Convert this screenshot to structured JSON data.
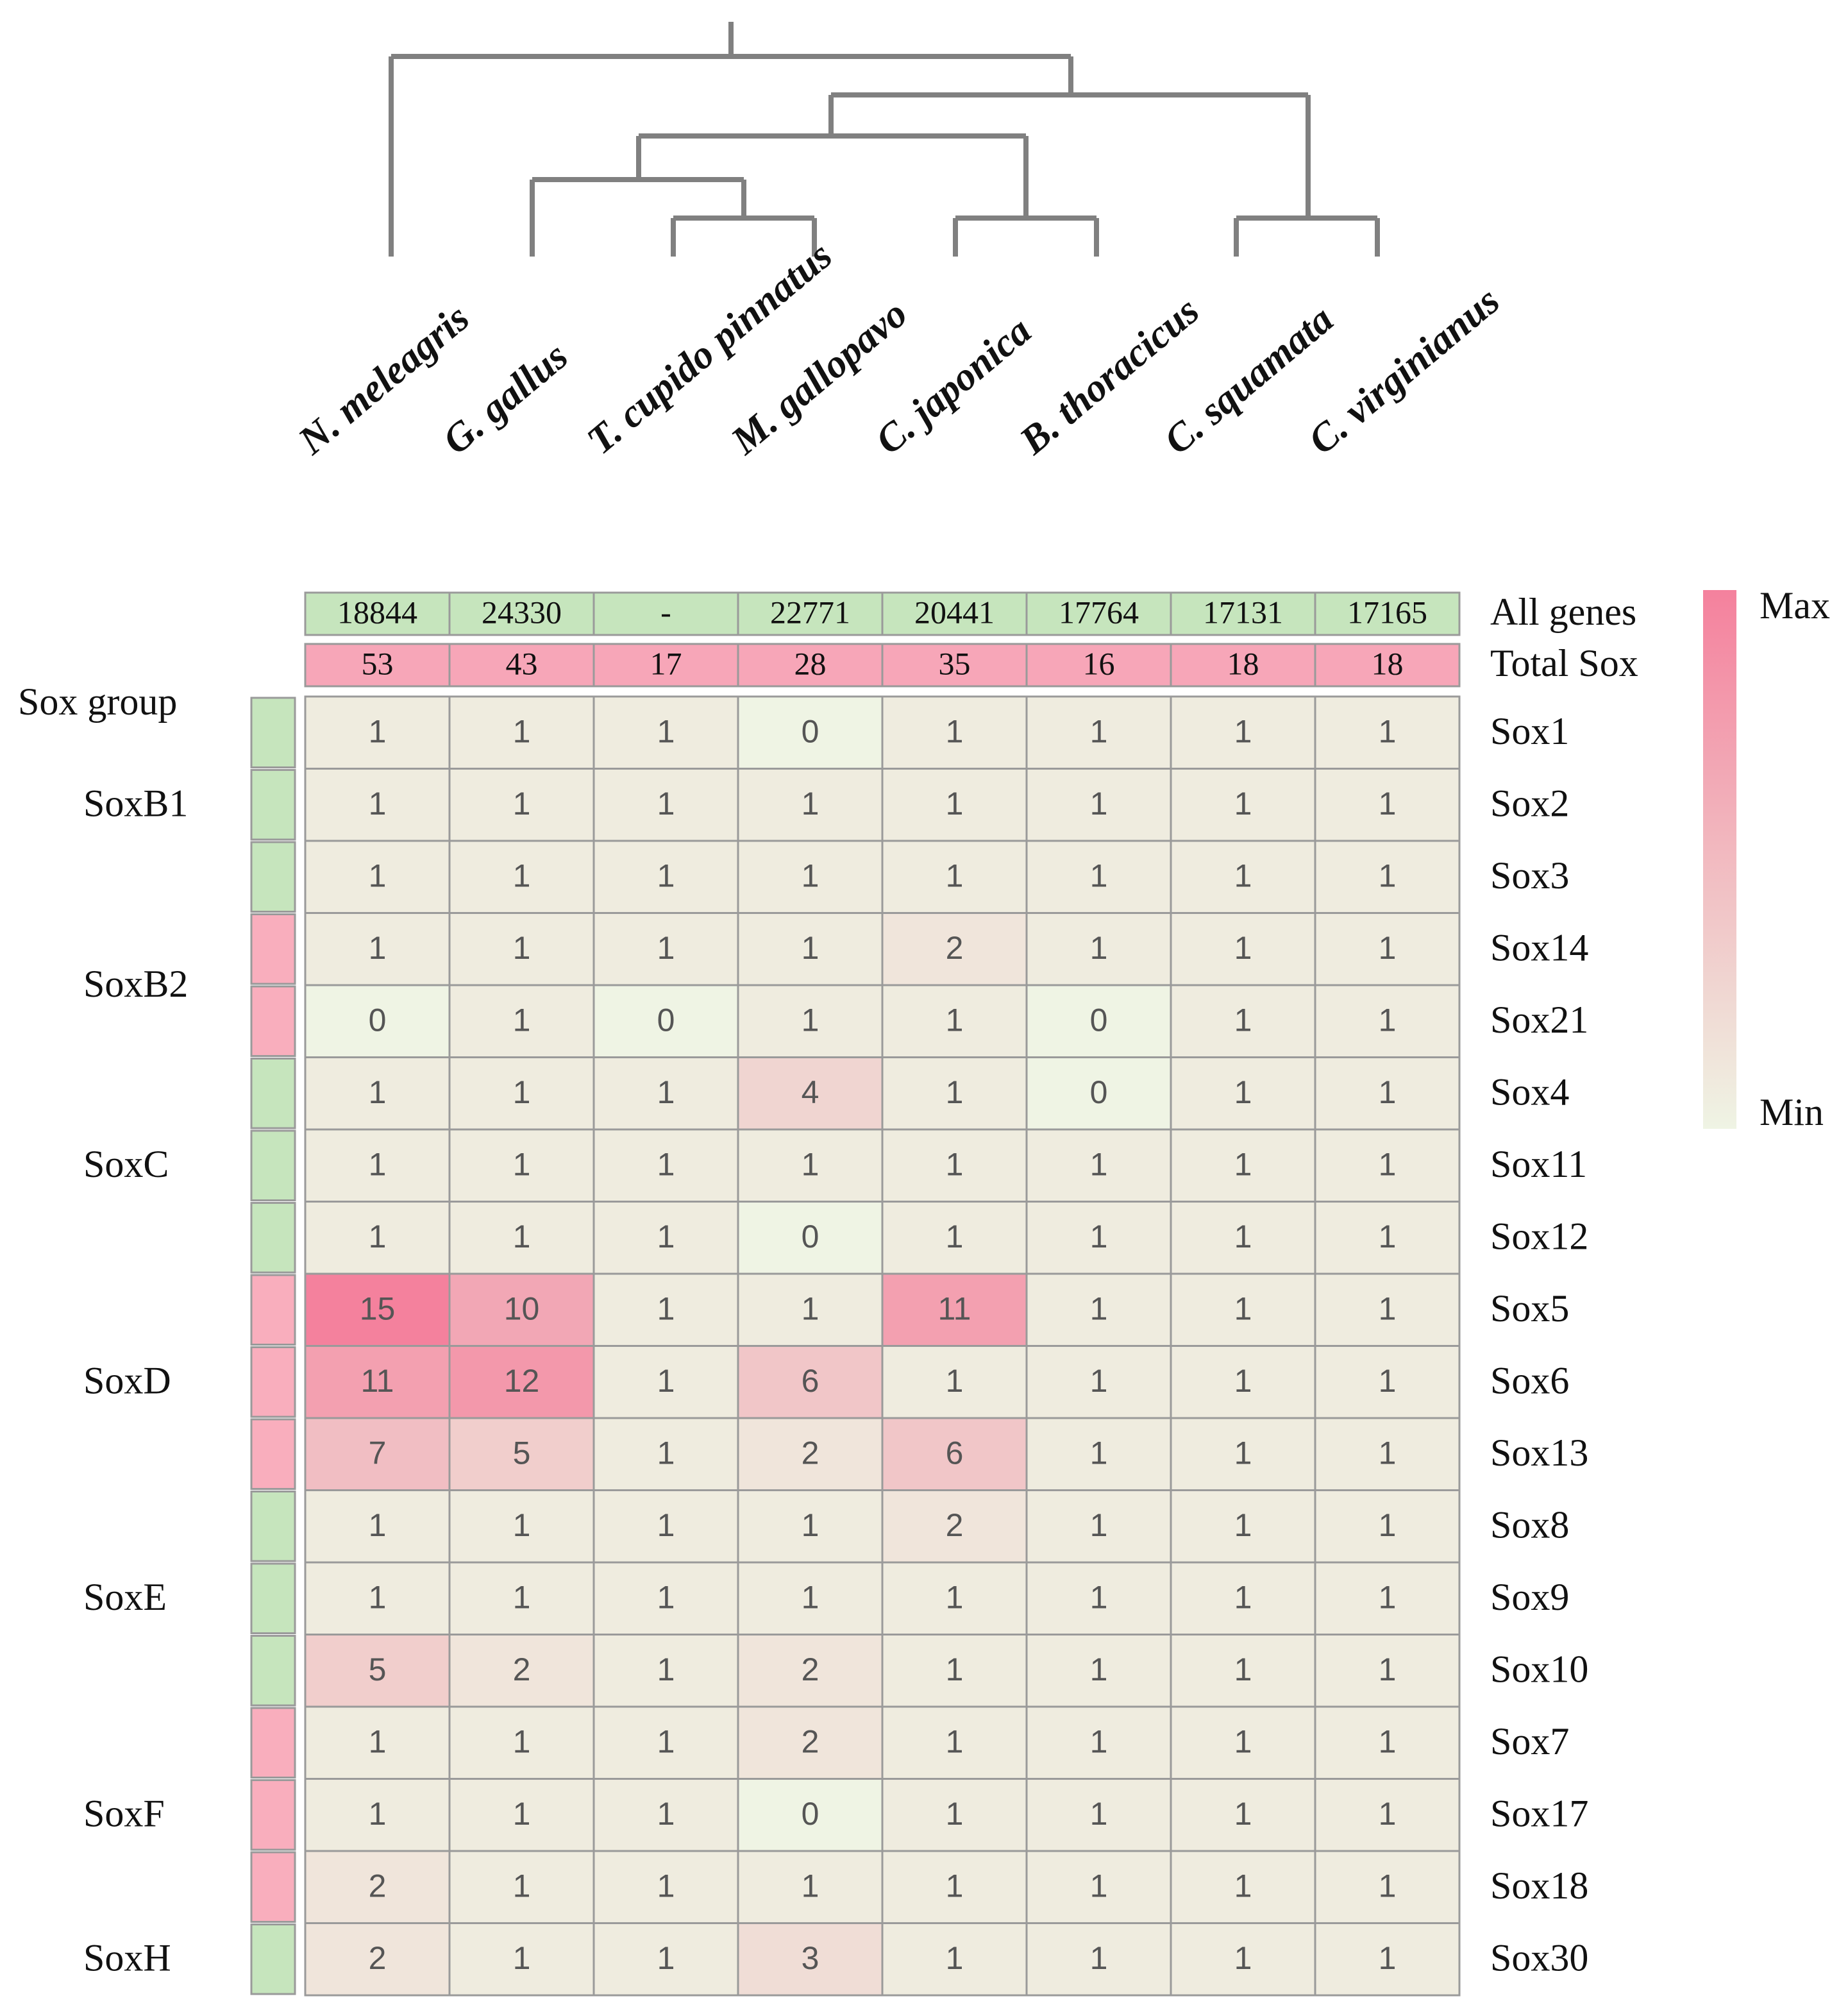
{
  "chart_data": {
    "type": "heatmap",
    "species": [
      "N. meleagris",
      "G. gallus",
      "T. cupido pinnatus",
      "M. gallopavo",
      "C. japonica",
      "B. thoracicus",
      "C. squamata",
      "C. virginianus"
    ],
    "all_genes_label": "All genes",
    "all_genes": [
      18844,
      24330,
      "-",
      22771,
      20441,
      17764,
      17131,
      17165
    ],
    "all_genes_color": "#c6e5bd",
    "total_sox_label": "Total Sox",
    "total_sox": [
      53,
      43,
      17,
      28,
      35,
      16,
      18,
      18
    ],
    "total_sox_color": "#f7a6b8",
    "group_header": "Sox group",
    "groups": [
      {
        "name": "SoxB1",
        "color": "#c6e5bd",
        "rows": 3
      },
      {
        "name": "SoxB2",
        "color": "#f9aebd",
        "rows": 2
      },
      {
        "name": "SoxC",
        "color": "#c6e5bd",
        "rows": 3
      },
      {
        "name": "SoxD",
        "color": "#f9aebd",
        "rows": 3
      },
      {
        "name": "SoxE",
        "color": "#c6e5bd",
        "rows": 3
      },
      {
        "name": "SoxF",
        "color": "#f9aebd",
        "rows": 3
      },
      {
        "name": "SoxH",
        "color": "#c6e5bd",
        "rows": 1
      }
    ],
    "genes": [
      "Sox1",
      "Sox2",
      "Sox3",
      "Sox14",
      "Sox21",
      "Sox4",
      "Sox11",
      "Sox12",
      "Sox5",
      "Sox6",
      "Sox13",
      "Sox8",
      "Sox9",
      "Sox10",
      "Sox7",
      "Sox17",
      "Sox18",
      "Sox30"
    ],
    "values": [
      [
        1,
        1,
        1,
        0,
        1,
        1,
        1,
        1
      ],
      [
        1,
        1,
        1,
        1,
        1,
        1,
        1,
        1
      ],
      [
        1,
        1,
        1,
        1,
        1,
        1,
        1,
        1
      ],
      [
        1,
        1,
        1,
        1,
        2,
        1,
        1,
        1
      ],
      [
        0,
        1,
        0,
        1,
        1,
        0,
        1,
        1
      ],
      [
        1,
        1,
        1,
        4,
        1,
        0,
        1,
        1
      ],
      [
        1,
        1,
        1,
        1,
        1,
        1,
        1,
        1
      ],
      [
        1,
        1,
        1,
        0,
        1,
        1,
        1,
        1
      ],
      [
        15,
        10,
        1,
        1,
        11,
        1,
        1,
        1
      ],
      [
        11,
        12,
        1,
        6,
        1,
        1,
        1,
        1
      ],
      [
        7,
        5,
        1,
        2,
        6,
        1,
        1,
        1
      ],
      [
        1,
        1,
        1,
        1,
        2,
        1,
        1,
        1
      ],
      [
        1,
        1,
        1,
        1,
        1,
        1,
        1,
        1
      ],
      [
        5,
        2,
        1,
        2,
        1,
        1,
        1,
        1
      ],
      [
        1,
        1,
        1,
        2,
        1,
        1,
        1,
        1
      ],
      [
        1,
        1,
        1,
        0,
        1,
        1,
        1,
        1
      ],
      [
        2,
        1,
        1,
        1,
        1,
        1,
        1,
        1
      ],
      [
        2,
        1,
        1,
        3,
        1,
        1,
        1,
        1
      ]
    ],
    "colorscale": [
      "#eff4e4",
      "#f4819d"
    ],
    "colorbar_max": "Max",
    "colorbar_min": "Min"
  }
}
